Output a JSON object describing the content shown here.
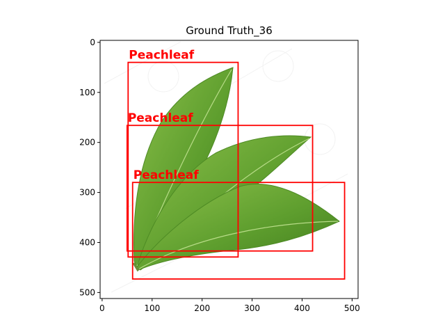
{
  "title": "Ground Truth_36",
  "image": {
    "description_icon": "peach-leaves-photo",
    "leaf_color": "#5e9e2e",
    "leaf_color_light": "#8cc04a",
    "leaf_color_dark": "#3f7a1c"
  },
  "axes": {
    "xlim": [
      -4,
      512
    ],
    "ylim": [
      512,
      -4
    ],
    "x_ticks": [
      0,
      100,
      200,
      300,
      400,
      500
    ],
    "y_ticks": [
      0,
      100,
      200,
      300,
      400,
      500
    ],
    "x_tick_labels": [
      "0",
      "100",
      "200",
      "300",
      "400",
      "500"
    ],
    "y_tick_labels": [
      "0",
      "100",
      "200",
      "300",
      "400",
      "500"
    ]
  },
  "annotations": {
    "box_color": "#ff0000",
    "boxes": [
      {
        "label": "Peachleaf",
        "x0": 52,
        "y0": 40,
        "x1": 272,
        "y1": 429
      },
      {
        "label": "Peachleaf",
        "x0": 50,
        "y0": 166,
        "x1": 421,
        "y1": 417
      },
      {
        "label": "Peachleaf",
        "x0": 61,
        "y0": 280,
        "x1": 485,
        "y1": 473
      }
    ]
  }
}
